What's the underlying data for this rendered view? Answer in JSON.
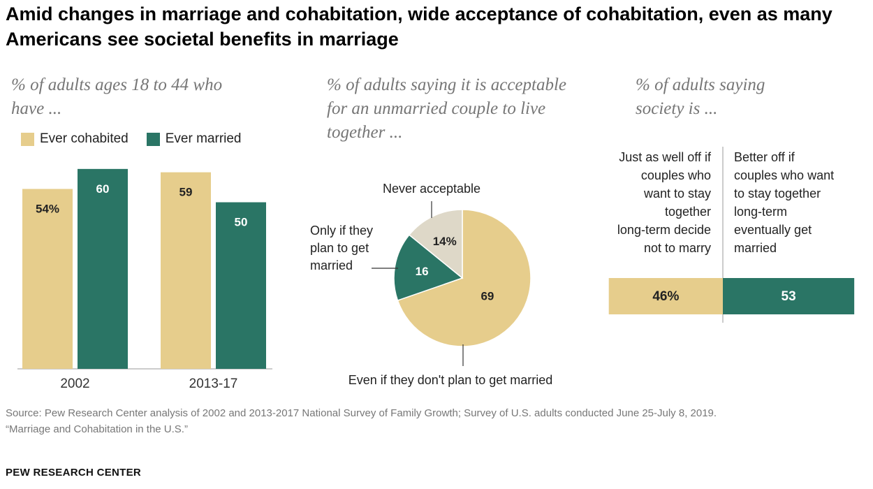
{
  "title": "Amid changes in marriage and cohabitation, wide acceptance of cohabitation, even as many Americans see societal benefits in marriage",
  "colors": {
    "gold": "#E6CD8C",
    "green": "#2A7565",
    "beige": "#DED8C8",
    "axis": "#999999"
  },
  "chart_data": [
    {
      "type": "bar",
      "title": "% of adults ages 18 to 44 who have ...",
      "categories": [
        "2002",
        "2013-17"
      ],
      "series": [
        {
          "name": "Ever cohabited",
          "values": [
            54,
            59
          ],
          "labels": [
            "54%",
            "59"
          ]
        },
        {
          "name": "Ever married",
          "values": [
            60,
            50
          ],
          "labels": [
            "60",
            "50"
          ]
        }
      ],
      "ylim": [
        0,
        65
      ]
    },
    {
      "type": "pie",
      "title": "% of adults saying it is acceptable for an unmarried couple to live together ...",
      "slices": [
        {
          "name": "Even if they don't plan to get married",
          "value": 69,
          "label": "69"
        },
        {
          "name": "Only if they plan to get married",
          "value": 16,
          "label": "16"
        },
        {
          "name": "Never acceptable",
          "value": 14,
          "label": "14%"
        }
      ]
    },
    {
      "type": "bar",
      "orientation": "horizontal-stacked",
      "title": "% of adults saying society is ...",
      "segments": [
        {
          "name": "Just as well off if couples who want to stay together long-term decide not to marry",
          "value": 46,
          "label": "46%"
        },
        {
          "name": "Better off if couples who want to stay together long-term eventually get married",
          "value": 53,
          "label": "53"
        }
      ]
    }
  ],
  "pie_callouts": {
    "never": "Never acceptable",
    "only_if": [
      "Only if they",
      "plan to get",
      "married"
    ],
    "even_if": "Even if they don't plan to get married"
  },
  "dual_labels": {
    "left": [
      "Just as well off if",
      "couples who",
      "want to stay",
      "together",
      "long-term decide",
      "not to marry"
    ],
    "right": [
      "Better off if",
      "couples who want",
      "to stay together",
      "long-term",
      "eventually get",
      "married"
    ]
  },
  "source": "Source: Pew Research Center analysis of 2002 and 2013-2017 National Survey of Family Growth; Survey of U.S. adults conducted June 25-July 8, 2019.",
  "report": "“Marriage and Cohabitation in the U.S.”",
  "brand": "PEW RESEARCH CENTER"
}
